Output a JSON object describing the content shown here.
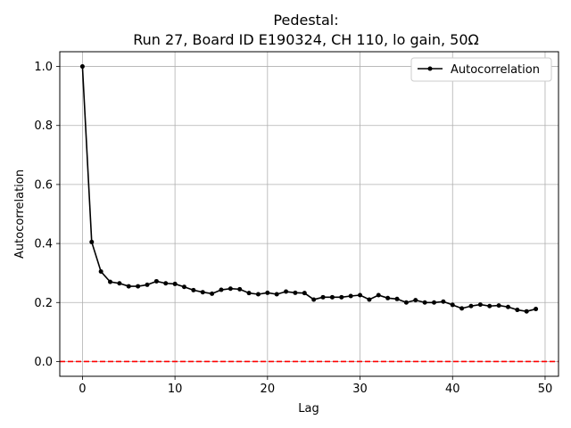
{
  "chart_data": {
    "type": "line",
    "title": "Pedestal:",
    "subtitle": "Run 27, Board ID E190324, CH 110, lo gain, 50Ω",
    "xlabel": "Lag",
    "ylabel": "Autocorrelation",
    "xlim": [
      -2.45,
      51.45
    ],
    "ylim": [
      -0.05,
      1.05
    ],
    "xticks": [
      0,
      10,
      20,
      30,
      40,
      50
    ],
    "yticks": [
      0.0,
      0.2,
      0.4,
      0.6,
      0.8,
      1.0
    ],
    "xtick_labels": [
      "0",
      "10",
      "20",
      "30",
      "40",
      "50"
    ],
    "ytick_labels": [
      "0.0",
      "0.2",
      "0.4",
      "0.6",
      "0.8",
      "1.0"
    ],
    "grid": true,
    "legend_position": "top-right",
    "series": [
      {
        "name": "Autocorrelation",
        "color": "#000000",
        "marker": "circle",
        "x": [
          0,
          1,
          2,
          3,
          4,
          5,
          6,
          7,
          8,
          9,
          10,
          11,
          12,
          13,
          14,
          15,
          16,
          17,
          18,
          19,
          20,
          21,
          22,
          23,
          24,
          25,
          26,
          27,
          28,
          29,
          30,
          31,
          32,
          33,
          34,
          35,
          36,
          37,
          38,
          39,
          40,
          41,
          42,
          43,
          44,
          45,
          46,
          47,
          48,
          49
        ],
        "values": [
          1.0,
          0.405,
          0.305,
          0.27,
          0.265,
          0.255,
          0.255,
          0.26,
          0.272,
          0.265,
          0.263,
          0.253,
          0.242,
          0.235,
          0.23,
          0.243,
          0.247,
          0.245,
          0.232,
          0.228,
          0.233,
          0.228,
          0.237,
          0.233,
          0.232,
          0.21,
          0.218,
          0.218,
          0.218,
          0.222,
          0.225,
          0.21,
          0.225,
          0.215,
          0.212,
          0.2,
          0.208,
          0.2,
          0.2,
          0.203,
          0.192,
          0.18,
          0.188,
          0.193,
          0.188,
          0.19,
          0.185,
          0.175,
          0.17,
          0.178
        ]
      }
    ],
    "reference_lines": [
      {
        "axis": "y",
        "value": 0.0,
        "color": "#ff0000",
        "style": "dashed"
      }
    ]
  }
}
